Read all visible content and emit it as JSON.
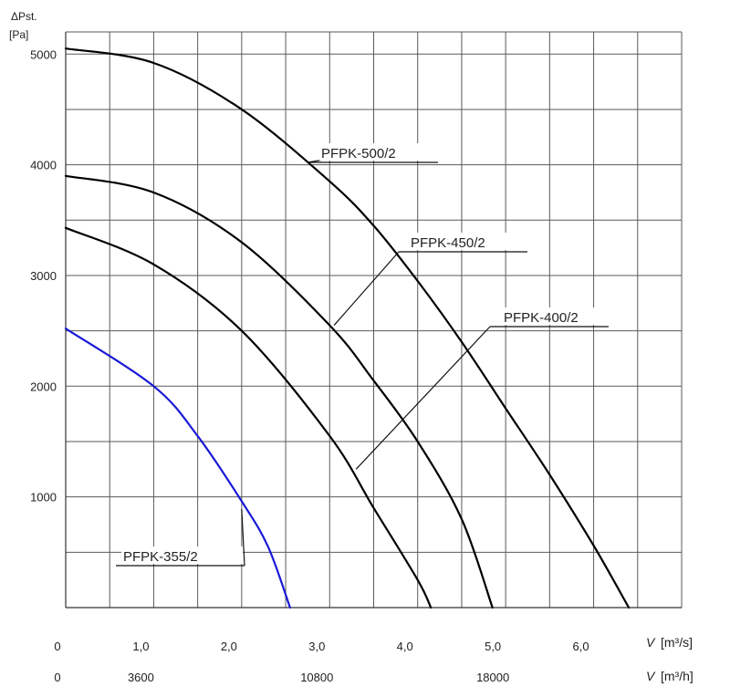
{
  "chart_data": {
    "type": "line",
    "title": "",
    "y_axis": {
      "label_symbol": "ΔPst.",
      "label_unit": "[Pa]",
      "range": [
        0,
        5200
      ],
      "ticks": [
        1000,
        2000,
        3000,
        4000,
        5000
      ]
    },
    "x_axis": {
      "label_symbol": "V",
      "label_unit_m3s": "[m³/s]",
      "label_unit_m3h": "[m³/h]",
      "range_m3s": [
        0,
        7.0
      ],
      "ticks_m3s": [
        "0",
        "1,0",
        "2,0",
        "3,0",
        "4,0",
        "5,0",
        "6,0"
      ],
      "ticks_m3h": [
        "0",
        "3600",
        "10800",
        "18000"
      ]
    },
    "grid": true,
    "series": [
      {
        "name": "PFPK-500/2",
        "color": "#000000",
        "points": [
          [
            0,
            5050
          ],
          [
            1,
            4920
          ],
          [
            2,
            4500
          ],
          [
            3,
            3850
          ],
          [
            3.5,
            3450
          ],
          [
            4,
            2950
          ],
          [
            4.5,
            2400
          ],
          [
            5,
            1800
          ],
          [
            5.5,
            1200
          ],
          [
            6,
            560
          ],
          [
            6.4,
            0
          ]
        ]
      },
      {
        "name": "PFPK-450/2",
        "color": "#000000",
        "points": [
          [
            0,
            3900
          ],
          [
            1,
            3750
          ],
          [
            2,
            3300
          ],
          [
            3,
            2550
          ],
          [
            3.5,
            2050
          ],
          [
            4,
            1500
          ],
          [
            4.5,
            800
          ],
          [
            4.85,
            0
          ]
        ]
      },
      {
        "name": "PFPK-400/2",
        "color": "#000000",
        "points": [
          [
            0,
            3430
          ],
          [
            1,
            3100
          ],
          [
            2,
            2500
          ],
          [
            3,
            1550
          ],
          [
            3.5,
            900
          ],
          [
            4,
            250
          ],
          [
            4.15,
            0
          ]
        ]
      },
      {
        "name": "PFPK-355/2",
        "color": "#1a1ad6",
        "points": [
          [
            0,
            2520
          ],
          [
            1,
            2000
          ],
          [
            1.5,
            1550
          ],
          [
            2,
            960
          ],
          [
            2.3,
            550
          ],
          [
            2.55,
            0
          ]
        ]
      }
    ],
    "callouts": [
      {
        "series": "PFPK-500/2",
        "label": "PFPK-500/2",
        "anchor": [
          3.2,
          4080
        ]
      },
      {
        "series": "PFPK-450/2",
        "label": "PFPK-450/2",
        "anchor": [
          3.05,
          2550
        ]
      },
      {
        "series": "PFPK-400/2",
        "label": "PFPK-400/2",
        "anchor": [
          3.3,
          1250
        ]
      },
      {
        "series": "PFPK-355/2",
        "label": "PFPK-355/2",
        "anchor": [
          2.0,
          890
        ]
      }
    ]
  }
}
